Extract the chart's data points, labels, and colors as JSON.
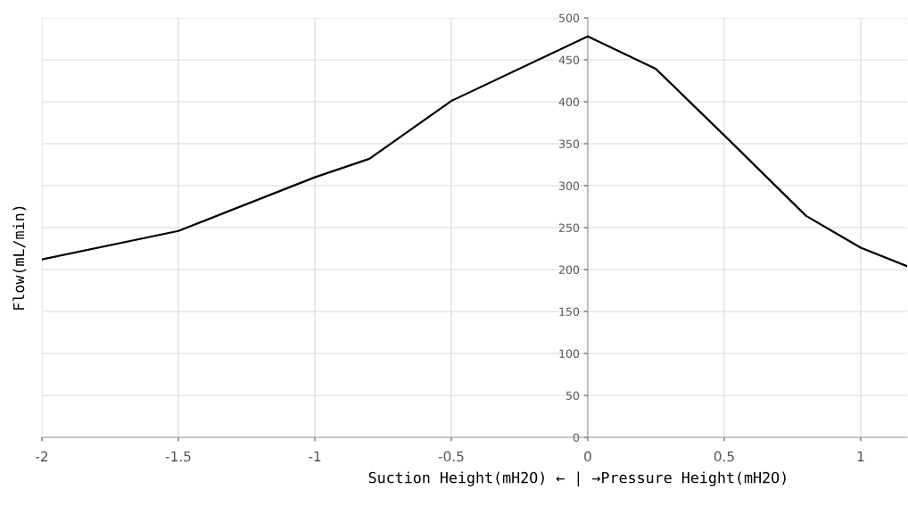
{
  "chart_data": {
    "type": "line",
    "xlabel": "Suction Height(mH2O) ← | →Pressure Height(mH2O)",
    "ylabel": "Flow(mL/min)",
    "x": [
      -2,
      -1.5,
      -1,
      -0.8,
      -0.5,
      0,
      0.25,
      0.5,
      0.8,
      1,
      1.17
    ],
    "series": [
      {
        "color": "#000000",
        "values": [
          212,
          246,
          310,
          332,
          401,
          478,
          439,
          360,
          264,
          226,
          204
        ]
      }
    ],
    "xlim": [
      -2,
      1.17
    ],
    "ylim": [
      0,
      500
    ],
    "xticks": [
      -2,
      -1.5,
      -1,
      -0.5,
      0,
      0.5,
      1
    ],
    "yticks": [
      0,
      50,
      100,
      150,
      200,
      250,
      300,
      350,
      400,
      450,
      500
    ],
    "grid": true,
    "legend": false,
    "marker": "none",
    "line_style": "solid"
  }
}
